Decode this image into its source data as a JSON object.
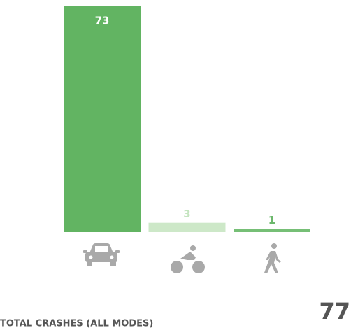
{
  "chart_data": {
    "type": "bar",
    "categories": [
      null,
      null,
      null
    ],
    "values": [
      73,
      3,
      1
    ],
    "colors": [
      "#62b462",
      "#cde8c8",
      "#76bf76"
    ],
    "label_colors": [
      "#ffffff",
      "#c4e4bf",
      "#6cb86c"
    ],
    "footer": {
      "label": "TOTAL CRASHES (ALL MODES)",
      "total": 77
    }
  }
}
